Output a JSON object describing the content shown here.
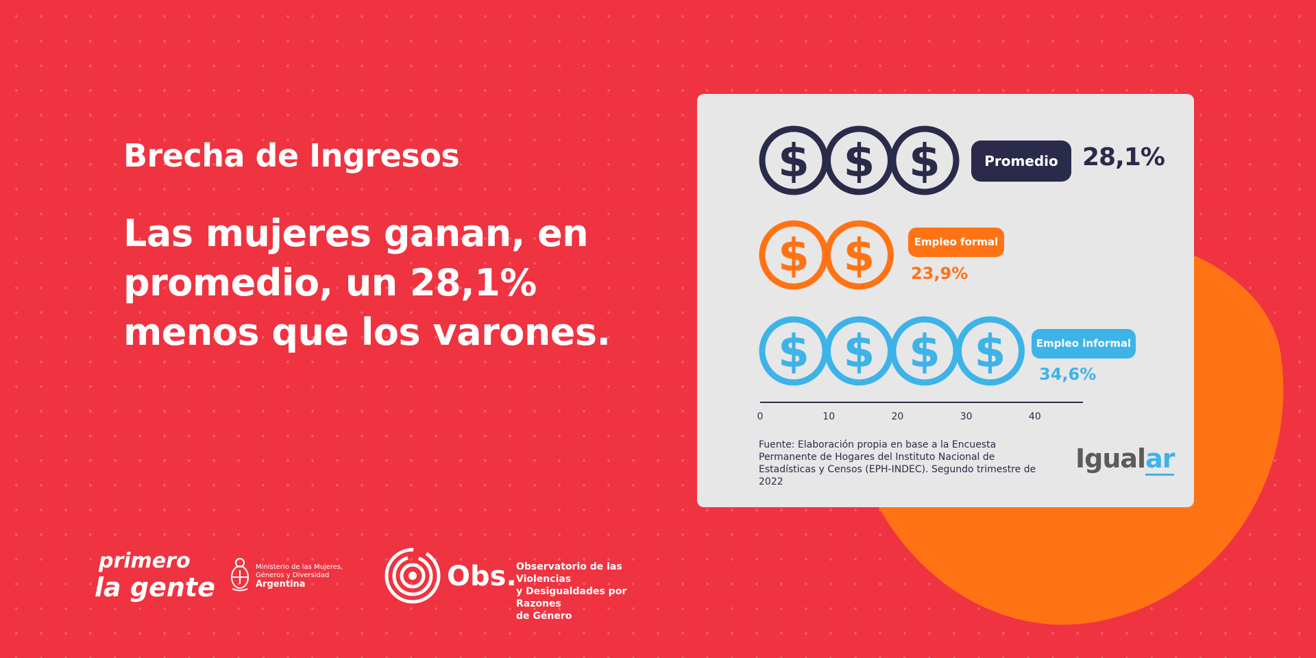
{
  "header": {
    "title": "Brecha de Ingresos",
    "message_lines": [
      "Las mujeres ganan, en",
      "promedio, un 28,1%",
      "menos que los varones."
    ]
  },
  "colors": {
    "background": "#EF3340",
    "accent_blob": "#FF7315",
    "card": "#E7E7E7",
    "navy": "#2A2A4A",
    "orange": "#FF7315",
    "blue": "#3DB3E8"
  },
  "chart_data": {
    "type": "bar",
    "mark": "dollar-coin-icon",
    "categories": [
      "Promedio",
      "Empleo formal",
      "Empleo informal"
    ],
    "values": [
      28.1,
      23.9,
      34.6
    ],
    "value_labels": [
      "28,1%",
      "23,9%",
      "34,6%"
    ],
    "colors": [
      "#2A2A4A",
      "#FF7315",
      "#3DB3E8"
    ],
    "coin_counts": [
      3,
      2,
      4
    ],
    "x_ticks": [
      0,
      10,
      20,
      30,
      40
    ],
    "xlim": [
      0,
      47
    ],
    "unit": "%"
  },
  "source": "Fuente: Elaboración propia en base a la Encuesta Permanente de Hogares del Instituto Nacional de Estadísticas y Censos (EPH-INDEC). Segundo trimestre de 2022",
  "brand": {
    "igualar_main": "Igual",
    "igualar_accent": "ar"
  },
  "footer": {
    "primero_line1": "primero",
    "primero_line2": "la gente",
    "ministerio_line1": "Ministerio de las Mujeres,",
    "ministerio_line2": "Géneros y Diversidad",
    "ministerio_country": "Argentina",
    "obs_label": "Obs.",
    "obs_line1": "Observatorio de las Violencias",
    "obs_line2": "y Desigualdades por Razones",
    "obs_line3": "de Género"
  }
}
